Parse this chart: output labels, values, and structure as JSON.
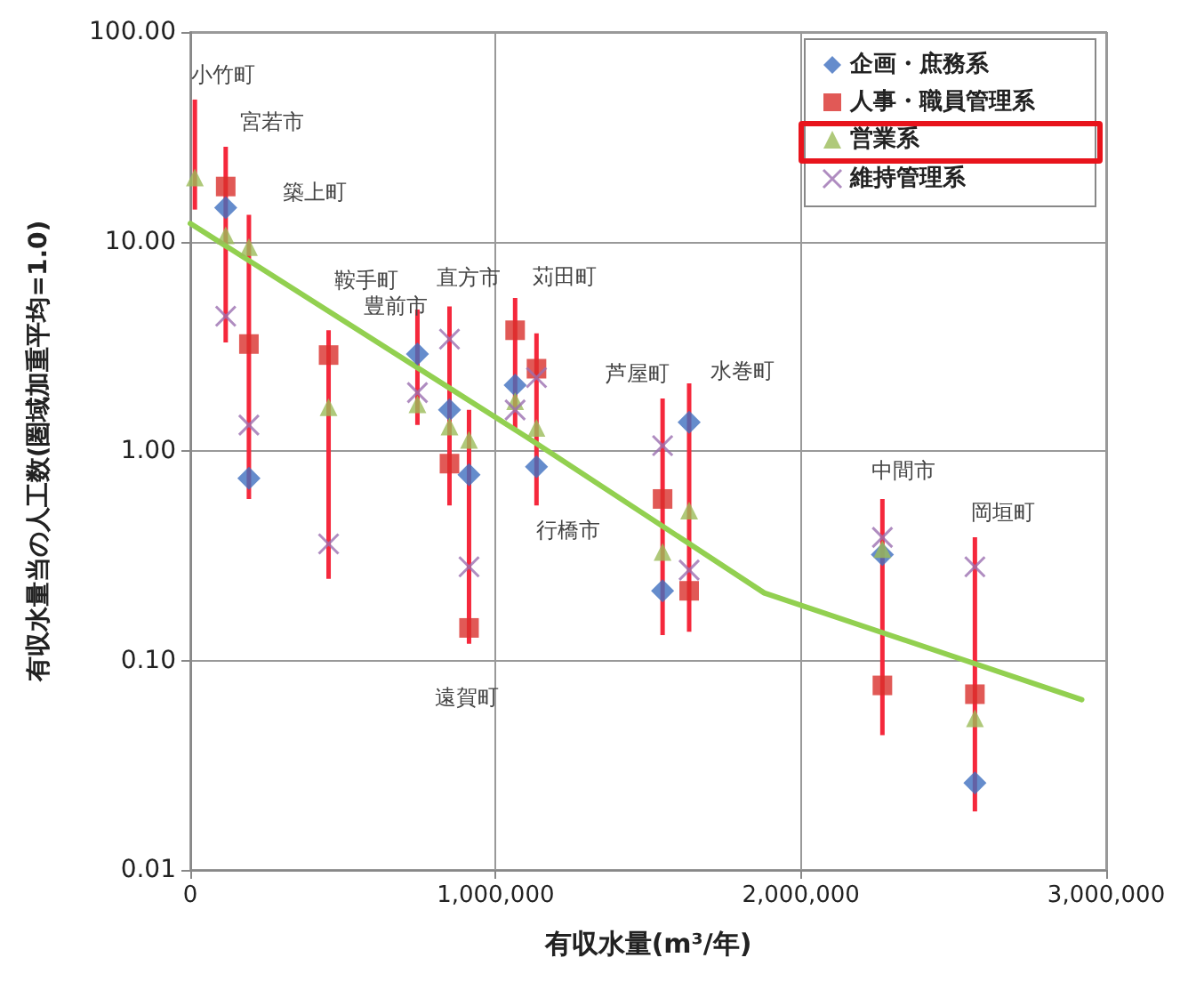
{
  "chart_data": {
    "type": "scatter",
    "xlabel": "有収水量(m³/年)",
    "ylabel": "有収水量当の人工数(圏域加重平均=1.0)",
    "x": [
      15000,
      116000,
      192000,
      453000,
      744000,
      849000,
      913000,
      1064000,
      1134000,
      1547000,
      1634000,
      2267000,
      2570000
    ],
    "series": [
      {
        "name": "企画・庶務系",
        "color": "#3f6fbf",
        "marker": "diamond",
        "values": [
          null,
          14.5,
          0.74,
          null,
          2.9,
          1.57,
          0.77,
          2.06,
          0.84,
          0.215,
          1.37,
          0.32,
          0.026
        ]
      },
      {
        "name": "人事・職員管理系",
        "color": "#d9302c",
        "marker": "square",
        "values": [
          null,
          18.3,
          3.24,
          2.87,
          null,
          0.87,
          0.143,
          3.77,
          2.47,
          0.59,
          0.215,
          0.076,
          0.069
        ]
      },
      {
        "name": "営業系",
        "color": "#9bbb59",
        "marker": "triangle",
        "values": [
          20.2,
          10.7,
          9.4,
          1.62,
          1.67,
          1.31,
          1.13,
          1.73,
          1.29,
          0.33,
          0.52,
          0.34,
          0.053
        ],
        "errors": [
          [
            14.2,
            47.6
          ],
          [
            3.3,
            28.3
          ],
          [
            0.59,
            13.4
          ],
          [
            0.245,
            3.77
          ],
          [
            1.33,
            4.73
          ],
          [
            0.55,
            4.9
          ],
          [
            0.12,
            1.57
          ],
          [
            1.29,
            5.38
          ],
          [
            0.55,
            3.64
          ],
          [
            0.132,
            1.78
          ],
          [
            0.137,
            2.1
          ],
          [
            0.044,
            0.59
          ],
          [
            0.019,
            0.387
          ]
        ]
      },
      {
        "name": "維持管理系",
        "color": "#9b6fb0",
        "marker": "cross",
        "values": [
          null,
          4.4,
          1.33,
          0.36,
          1.9,
          3.42,
          0.28,
          1.57,
          2.24,
          1.06,
          0.27,
          0.387,
          0.28
        ]
      },
      {
        "type": "line",
        "color": "#92d050",
        "marker": "none",
        "x": [
          0,
          1100000,
          1880000,
          2920000
        ],
        "values": [
          12.2,
          1.17,
          0.21,
          0.065
        ]
      }
    ],
    "log": "y",
    "xlim": [
      0,
      3000000
    ],
    "xticks": [
      {
        "value": 0,
        "label": "0"
      },
      {
        "value": 1000000,
        "label": "1,000,000"
      },
      {
        "value": 2000000,
        "label": "2,000,000"
      },
      {
        "value": 3000000,
        "label": "3,000,000"
      }
    ],
    "ylim": [
      0.01,
      100
    ],
    "yticks": [
      {
        "value": 0.01,
        "label": "0.01"
      },
      {
        "value": 0.1,
        "label": "0.10"
      },
      {
        "value": 1,
        "label": "1.00"
      },
      {
        "value": 10,
        "label": "10.00"
      },
      {
        "value": 100,
        "label": "100.00"
      }
    ],
    "grid": true,
    "legend": "top right",
    "annotations": [
      {
        "text": "小竹町",
        "x": 15000,
        "y": 47.6
      },
      {
        "text": "宮若市",
        "x": 116000,
        "y": 28.3
      },
      {
        "text": "築上町",
        "x": 192000,
        "y": 13.4
      },
      {
        "text": "鞍手町",
        "x": 453000,
        "y": 3.77
      },
      {
        "text": "豊前市",
        "x": 744000,
        "y": 4.73
      },
      {
        "text": "直方市",
        "x": 849000,
        "y": 4.9
      },
      {
        "text": "苅田町",
        "x": 1064000,
        "y": 5.38
      },
      {
        "text": "行橋市",
        "x": 1134000,
        "y": 0.55
      },
      {
        "text": "遠賀町",
        "x": 913000,
        "y": 0.12
      },
      {
        "text": "芦屋町",
        "x": 1547000,
        "y": 1.78
      },
      {
        "text": "水巻町",
        "x": 1634000,
        "y": 2.1
      },
      {
        "text": "中間市",
        "x": 2267000,
        "y": 0.59
      },
      {
        "text": "岡垣町",
        "x": 2570000,
        "y": 0.387
      }
    ]
  }
}
